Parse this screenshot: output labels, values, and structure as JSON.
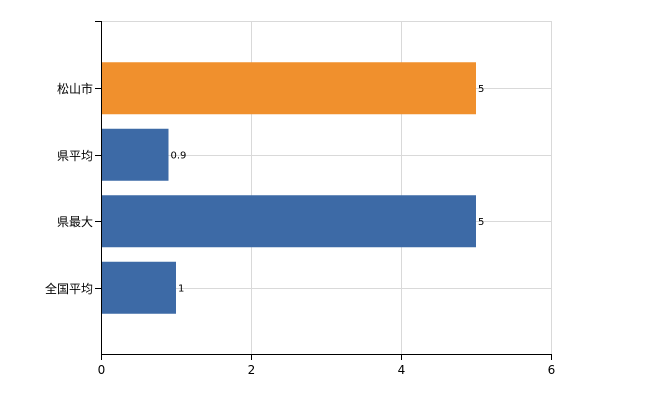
{
  "chart_data": {
    "type": "bar",
    "orientation": "horizontal",
    "title": "",
    "xlabel": "",
    "ylabel": "",
    "categories": [
      "松山市",
      "県平均",
      "県最大",
      "全国平均"
    ],
    "values": [
      5,
      0.9,
      5,
      1
    ],
    "data_labels": [
      "5",
      "0.9",
      "5",
      "1"
    ],
    "bar_colors": [
      "#f0902d",
      "#3d6aa6",
      "#3d6aa6",
      "#3d6aa6"
    ],
    "xlim": [
      0,
      6
    ],
    "x_ticks": [
      0,
      2,
      4,
      6
    ],
    "x_tick_labels": [
      "0",
      "2",
      "4",
      "6"
    ],
    "grid": true,
    "legend": "none"
  }
}
